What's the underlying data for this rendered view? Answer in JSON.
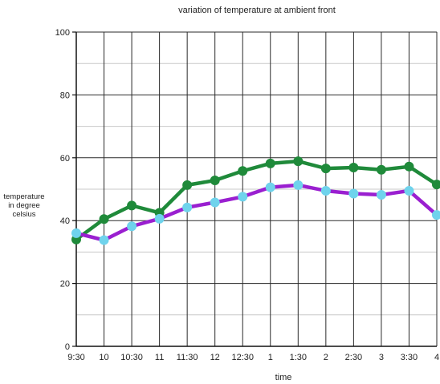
{
  "chart_data": {
    "type": "line",
    "title": "variation of temperature at ambient front",
    "xlabel": "time",
    "ylabel_lines": [
      "temperature",
      "in degree",
      "celsius"
    ],
    "categories": [
      "9:30",
      "10",
      "10:30",
      "11",
      "11:30",
      "12",
      "12:30",
      "1",
      "1:30",
      "2",
      "2:30",
      "3",
      "3:30",
      "4"
    ],
    "ylim": [
      0,
      100
    ],
    "yticks": [
      0,
      20,
      40,
      60,
      80,
      100
    ],
    "grid": true,
    "legend": "none",
    "series": [
      {
        "color": "#1f8a3a",
        "marker_color": "#1f8a3a",
        "values": [
          34,
          40.5,
          44.8,
          42.5,
          51.3,
          52.8,
          55.8,
          58.2,
          58.9,
          56.6,
          56.9,
          56.2,
          57.2,
          51.5
        ]
      },
      {
        "color": "#9a1fd0",
        "marker_color": "#6fd3ec",
        "values": [
          36,
          33.8,
          38.2,
          40.6,
          44.2,
          45.8,
          47.6,
          50.6,
          51.3,
          49.5,
          48.6,
          48.2,
          49.5,
          41.8
        ]
      }
    ]
  }
}
